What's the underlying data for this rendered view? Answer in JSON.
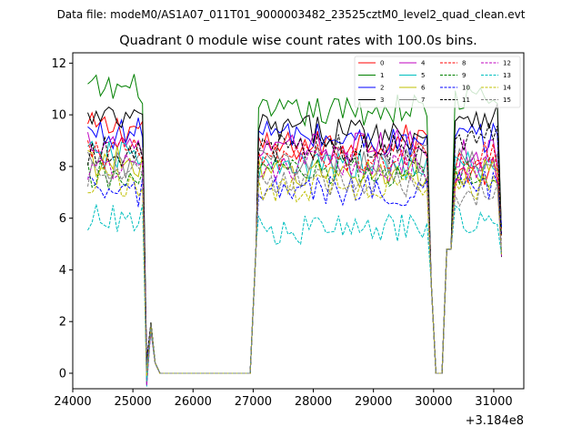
{
  "suptitle": "Data file: modeM0/AS1A07_011T01_9000003482_23525cztM0_level2_quad_clean.evt",
  "chart_data": {
    "type": "line",
    "title": "Quadrant 0 module wise count rates with 100.0s bins.",
    "xlabel": "",
    "ylabel": "",
    "x_offset_label": "+3.184e8",
    "xlim": [
      24000,
      31500
    ],
    "ylim": [
      -0.6,
      12.4
    ],
    "x_ticks": [
      24000,
      25000,
      26000,
      27000,
      28000,
      29000,
      30000,
      31000
    ],
    "x_tick_labels": [
      "24000",
      "25000",
      "26000",
      "27000",
      "28000",
      "29000",
      "30000",
      "31000"
    ],
    "y_ticks": [
      0,
      2,
      4,
      6,
      8,
      10,
      12
    ],
    "y_tick_labels": [
      "0",
      "2",
      "4",
      "6",
      "8",
      "10",
      "12"
    ],
    "grid": false,
    "legend_position": "top-right",
    "segments": [
      {
        "start": 24250,
        "step": 70,
        "count": 17
      },
      {
        "start": 25450,
        "step": 100,
        "count": 17
      },
      {
        "start": 27090,
        "step": 70,
        "count": 42
      },
      {
        "start": 30040,
        "step": 100,
        "count": 2
      },
      {
        "start": 30220,
        "step": 70,
        "count": 14
      }
    ],
    "series": [
      {
        "name": "0",
        "color": "#ff0000",
        "dash": "solid",
        "levels": [
          9.5,
          8.7,
          9.1,
          7.8
        ]
      },
      {
        "name": "1",
        "color": "#008000",
        "dash": "solid",
        "levels": [
          11.0,
          10.0,
          10.3,
          10.6
        ]
      },
      {
        "name": "2",
        "color": "#0000ff",
        "dash": "solid",
        "levels": [
          9.3,
          9.3,
          8.8,
          9.1
        ]
      },
      {
        "name": "3",
        "color": "#000000",
        "dash": "solid",
        "levels": [
          9.8,
          9.5,
          9.2,
          10.0
        ]
      },
      {
        "name": "4",
        "color": "#bf00bf",
        "dash": "solid",
        "levels": [
          9.0,
          8.6,
          8.9,
          8.5
        ]
      },
      {
        "name": "5",
        "color": "#00bfbf",
        "dash": "solid",
        "levels": [
          8.4,
          7.9,
          8.1,
          8.0
        ]
      },
      {
        "name": "6",
        "color": "#bfbf00",
        "dash": "solid",
        "levels": [
          8.2,
          7.7,
          7.8,
          7.7
        ]
      },
      {
        "name": "7",
        "color": "#808080",
        "dash": "solid",
        "levels": [
          8.1,
          8.2,
          8.3,
          8.1
        ]
      },
      {
        "name": "8",
        "color": "#ff0000",
        "dash": "dashed",
        "levels": [
          8.5,
          8.3,
          8.4,
          8.4
        ]
      },
      {
        "name": "9",
        "color": "#008000",
        "dash": "dashed",
        "levels": [
          7.6,
          7.8,
          7.7,
          7.6
        ]
      },
      {
        "name": "10",
        "color": "#0000ff",
        "dash": "dashed",
        "levels": [
          7.0,
          7.0,
          7.1,
          7.3
        ]
      },
      {
        "name": "11",
        "color": "#000000",
        "dash": "dashed",
        "levels": [
          8.6,
          8.8,
          8.6,
          9.2
        ]
      },
      {
        "name": "12",
        "color": "#bf00bf",
        "dash": "dashed",
        "levels": [
          8.0,
          8.0,
          8.0,
          7.9
        ]
      },
      {
        "name": "13",
        "color": "#00bfbf",
        "dash": "dashed",
        "levels": [
          6.0,
          5.5,
          5.6,
          6.0
        ]
      },
      {
        "name": "14",
        "color": "#bfbf00",
        "dash": "dashed",
        "levels": [
          7.4,
          7.1,
          7.4,
          7.2
        ]
      },
      {
        "name": "15",
        "color": "#808080",
        "dash": "dashed",
        "levels": [
          7.6,
          7.4,
          7.4,
          7.0
        ]
      }
    ]
  }
}
